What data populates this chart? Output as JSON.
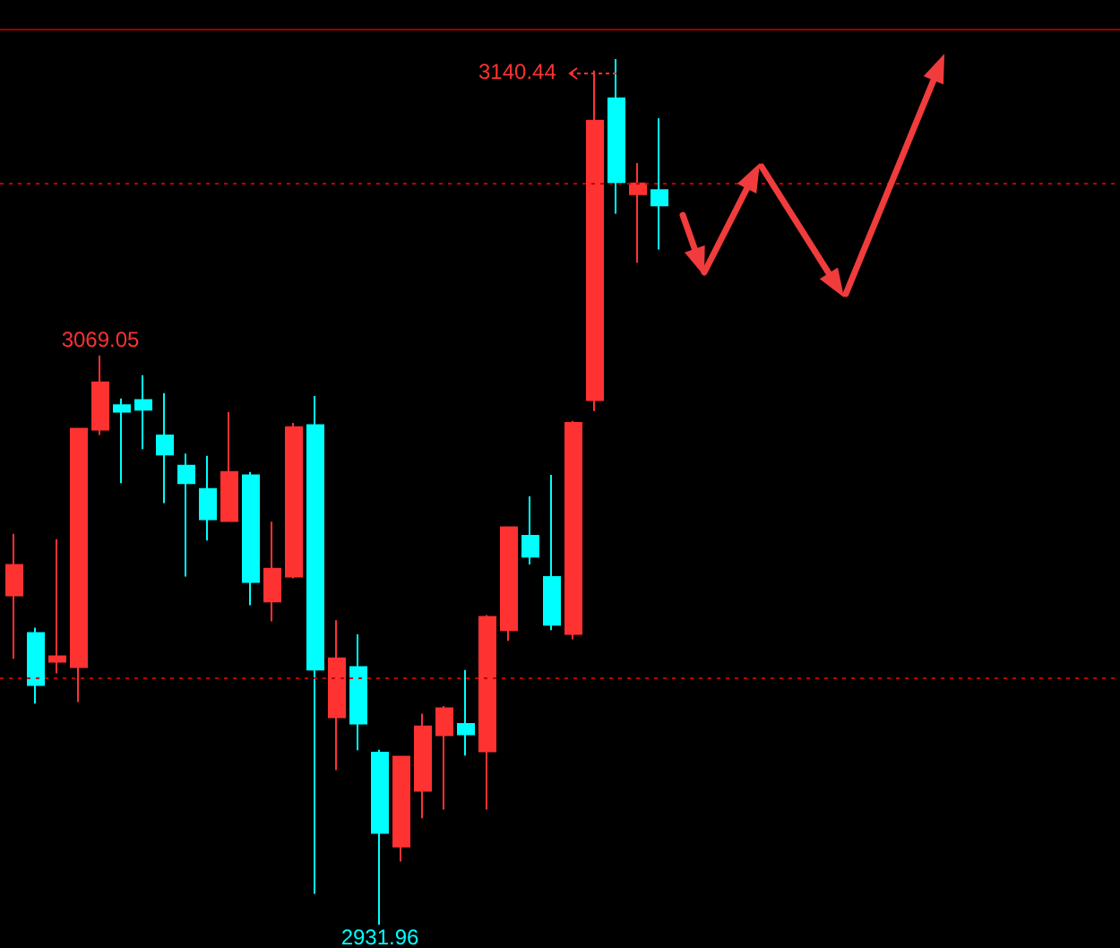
{
  "chart_data": {
    "type": "candlestick",
    "categories": [
      null,
      null,
      null,
      null,
      null,
      null,
      null,
      null,
      null,
      null,
      null,
      null,
      null,
      null,
      null,
      null,
      null,
      null,
      null,
      null,
      null,
      null,
      null,
      null,
      null,
      null,
      null,
      null,
      null,
      null,
      null
    ],
    "ohlc": [
      [
        3011.3,
        3026.1,
        2996.0,
        3018.6
      ],
      [
        3002.2,
        3003.5,
        2985.2,
        2989.7
      ],
      [
        2995.3,
        3024.8,
        2992.5,
        2996.6
      ],
      [
        2994.0,
        3051.4,
        2985.6,
        3051.4
      ],
      [
        3051.2,
        3069.05,
        3049.9,
        3062.6
      ],
      [
        3057.1,
        3058.7,
        3038.3,
        3055.5
      ],
      [
        3058.3,
        3064.3,
        3046.5,
        3056.0
      ],
      [
        3049.8,
        3060.0,
        3033.5,
        3045.2
      ],
      [
        3042.5,
        3045.4,
        3015.8,
        3038.3
      ],
      [
        3036.9,
        3044.9,
        3024.5,
        3029.6
      ],
      [
        3029.2,
        3055.4,
        3029.2,
        3041.0
      ],
      [
        3040.2,
        3041.0,
        3008.9,
        3014.5
      ],
      [
        3009.8,
        3029.0,
        3005.0,
        3017.7
      ],
      [
        3015.8,
        3052.8,
        3015.4,
        3051.8
      ],
      [
        3052.3,
        3059.3,
        2939.4,
        2993.4
      ],
      [
        2981.9,
        3005.3,
        2969.2,
        2996.1
      ],
      [
        2994.0,
        3001.9,
        2974.0,
        2980.4
      ],
      [
        2973.4,
        2974.1,
        2931.96,
        2954.1
      ],
      [
        2950.8,
        2972.4,
        2947.2,
        2972.4
      ],
      [
        2964.2,
        2982.8,
        2957.6,
        2979.7
      ],
      [
        2977.6,
        2984.6,
        2959.7,
        2984.1
      ],
      [
        2980.3,
        2993.3,
        2972.7,
        2977.8
      ],
      [
        2973.7,
        3006.5,
        2959.7,
        3006.1
      ],
      [
        3002.9,
        3027.7,
        3000.3,
        3027.7
      ],
      [
        3025.6,
        3035.1,
        3018.7,
        3020.6
      ],
      [
        3015.7,
        3040.3,
        3002.9,
        3004.2
      ],
      [
        3002.0,
        3053.3,
        3000.7,
        3052.8
      ],
      [
        3058.3,
        3137.7,
        3055.7,
        3125.6
      ],
      [
        3131.0,
        3140.44,
        3103.2,
        3110.8
      ],
      [
        3107.9,
        3115.4,
        3091.4,
        3110.5
      ],
      [
        3108.9,
        3126.2,
        3094.6,
        3105.2
      ]
    ],
    "colors": [
      "#ff3232",
      "#00ffff",
      "#ff3232",
      "#ff3232",
      "#ff3232",
      "#00ffff",
      "#00ffff",
      "#00ffff",
      "#00ffff",
      "#00ffff",
      "#ff3232",
      "#00ffff",
      "#ff3232",
      "#ff3232",
      "#00ffff",
      "#ff3232",
      "#00ffff",
      "#00ffff",
      "#ff3232",
      "#ff3232",
      "#ff3232",
      "#00ffff",
      "#ff3232",
      "#ff3232",
      "#00ffff",
      "#00ffff",
      "#ff3232",
      "#ff3232",
      "#00ffff",
      "#ff3232",
      "#00ffff"
    ],
    "ref_lines": [
      {
        "axis": "y",
        "value": 3147.8,
        "color": "#a00000",
        "line_style": "solid"
      },
      {
        "axis": "y",
        "value": 3110.7,
        "color": "#c00000",
        "line_style": "dotted"
      },
      {
        "axis": "y",
        "value": 2991.5,
        "color": "#c00000",
        "line_style": "dotted"
      }
    ],
    "annotations": [
      "3140.44",
      {
        "text": "3069.05",
        "y": 3069.05
      },
      {
        "text": "2931.96",
        "y": 2931.96
      }
    ],
    "tick_labels": false
  }
}
